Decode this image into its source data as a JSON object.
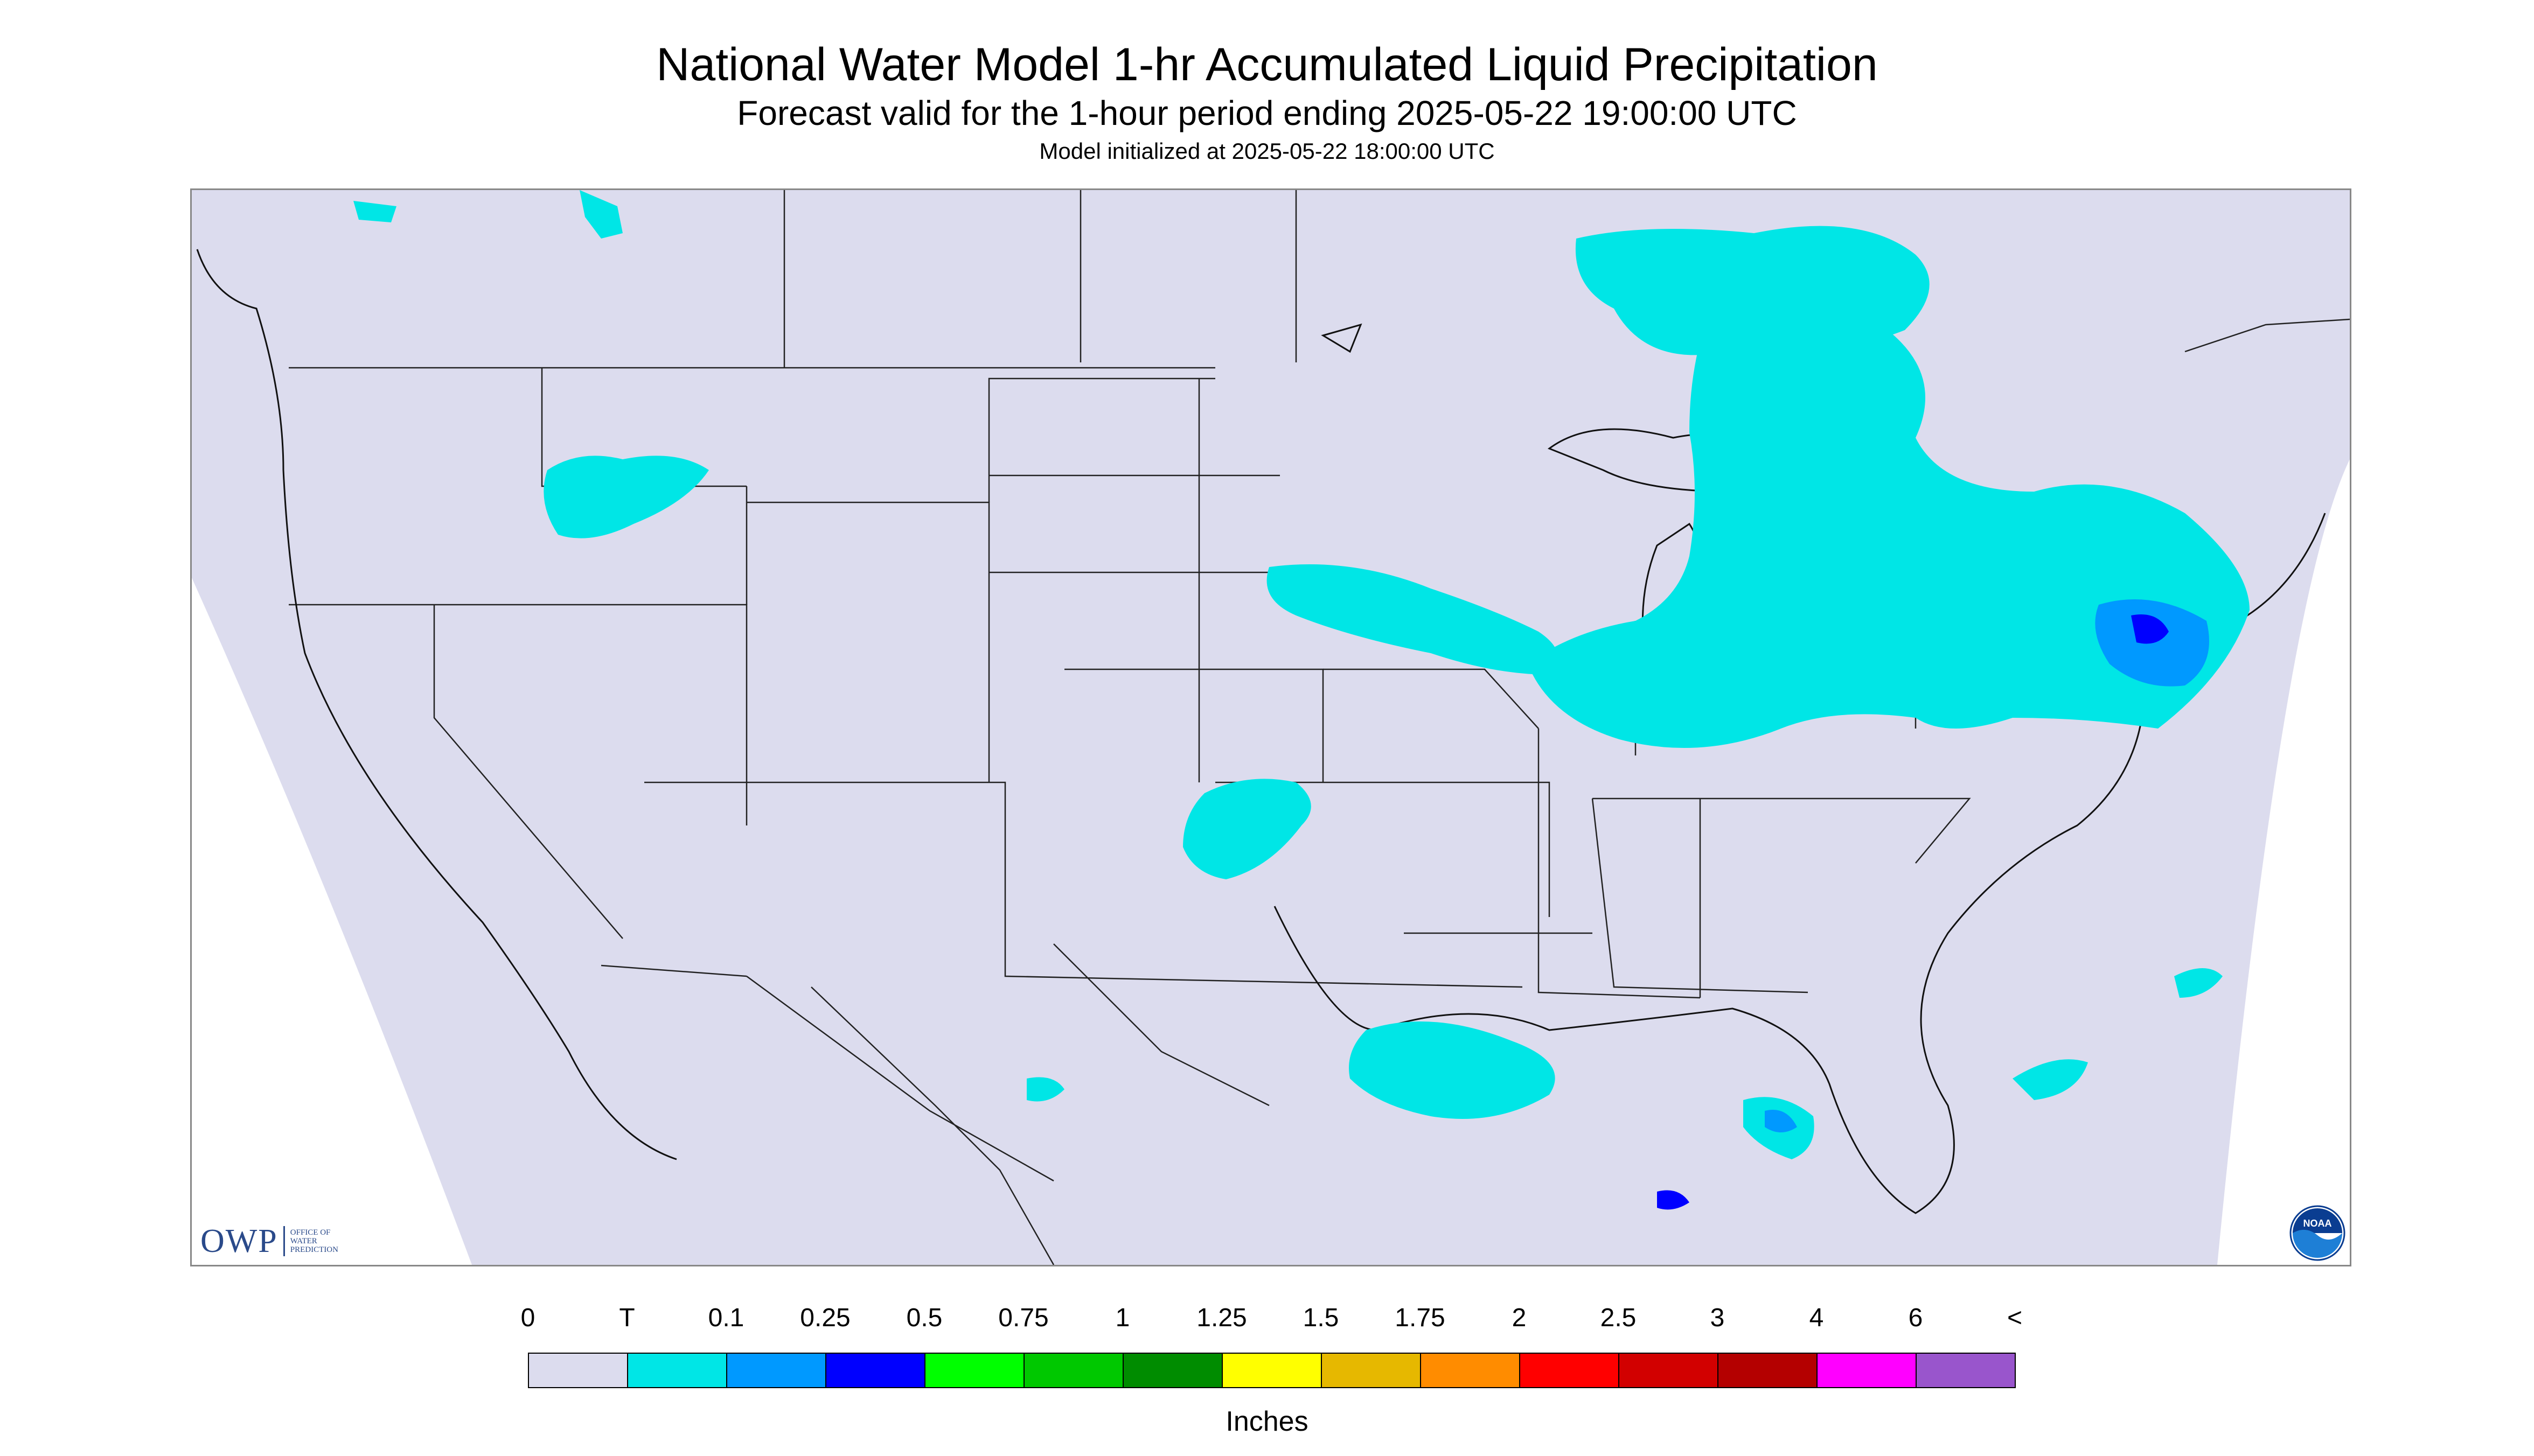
{
  "header": {
    "title": "National Water Model 1-hr Accumulated Liquid Precipitation",
    "subtitle": "Forecast valid for the 1-hour period ending 2025-05-22 19:00:00 UTC",
    "initialized": "Model initialized at 2025-05-22 18:00:00 UTC"
  },
  "logos": {
    "owp_mark": "OWP",
    "owp_text_1": "OFFICE OF",
    "owp_text_2": "WATER",
    "owp_text_3": "PREDICTION",
    "noaa": "NOAA"
  },
  "map": {
    "background_color": "#dcdcee",
    "outside_color": "#ffffff",
    "trace_color": "#00e6e6",
    "light_blue_color": "#0099ff",
    "blue_color": "#0000ff"
  },
  "legend": {
    "tick_labels": [
      "0",
      "T",
      "0.1",
      "0.25",
      "0.5",
      "0.75",
      "1",
      "1.25",
      "1.5",
      "1.75",
      "2",
      "2.5",
      "3",
      "4",
      "6",
      "<"
    ],
    "colors": [
      "#dcdcee",
      "#00e6e6",
      "#0099ff",
      "#0000ff",
      "#00ff00",
      "#00c800",
      "#008c00",
      "#ffff00",
      "#e6b800",
      "#ff8c00",
      "#ff0000",
      "#d20000",
      "#b40000",
      "#ff00ff",
      "#9955cc"
    ],
    "units": "Inches"
  }
}
